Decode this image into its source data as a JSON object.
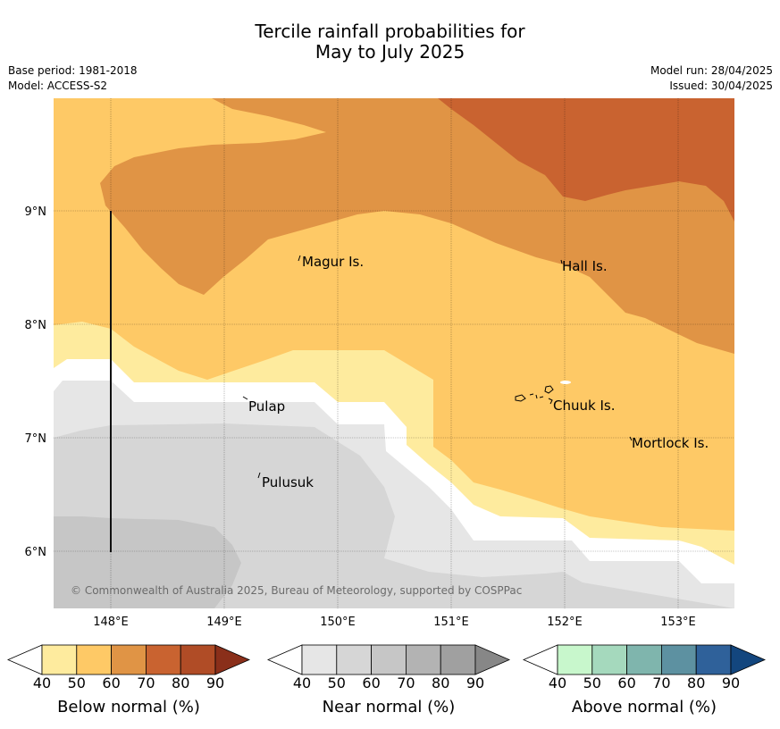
{
  "title": {
    "line1": "Tercile rainfall probabilities for",
    "line2": "May to July 2025"
  },
  "meta": {
    "base_period": "Base period: 1981-2018",
    "model": "Model: ACCESS-S2",
    "model_run": "Model run: 28/04/2025",
    "issued": "Issued: 30/04/2025"
  },
  "map": {
    "lon_ticks": [
      "148°E",
      "149°E",
      "150°E",
      "151°E",
      "152°E",
      "153°E"
    ],
    "lat_ticks": [
      "9°N",
      "8°N",
      "7°N",
      "6°N"
    ],
    "places": [
      "Magur Is.",
      "Hall Is.",
      "Pulap",
      "Chuuk Is.",
      "Mortlock Is.",
      "Pulusuk"
    ],
    "copyright": "© Commonwealth of Australia 2025, Bureau of Meteorology, supported by COSPPac"
  },
  "colorbars": [
    {
      "label": "Below normal (%)",
      "ticks": [
        "40",
        "50",
        "60",
        "70",
        "80",
        "90"
      ],
      "colors": [
        "#ffffff",
        "#feeb9e",
        "#fec966",
        "#e09445",
        "#c96330",
        "#b04c26",
        "#8a2f1a"
      ]
    },
    {
      "label": "Near normal (%)",
      "ticks": [
        "40",
        "50",
        "60",
        "70",
        "80",
        "90"
      ],
      "colors": [
        "#ffffff",
        "#e6e6e6",
        "#d6d6d6",
        "#c6c6c6",
        "#b3b3b3",
        "#a0a0a0",
        "#878787"
      ]
    },
    {
      "label": "Above normal (%)",
      "ticks": [
        "40",
        "50",
        "60",
        "70",
        "80",
        "90"
      ],
      "colors": [
        "#ffffff",
        "#c8f7cc",
        "#a5d9bd",
        "#7fb5ad",
        "#5d91a1",
        "#2f619a",
        "#13467e"
      ]
    }
  ]
}
